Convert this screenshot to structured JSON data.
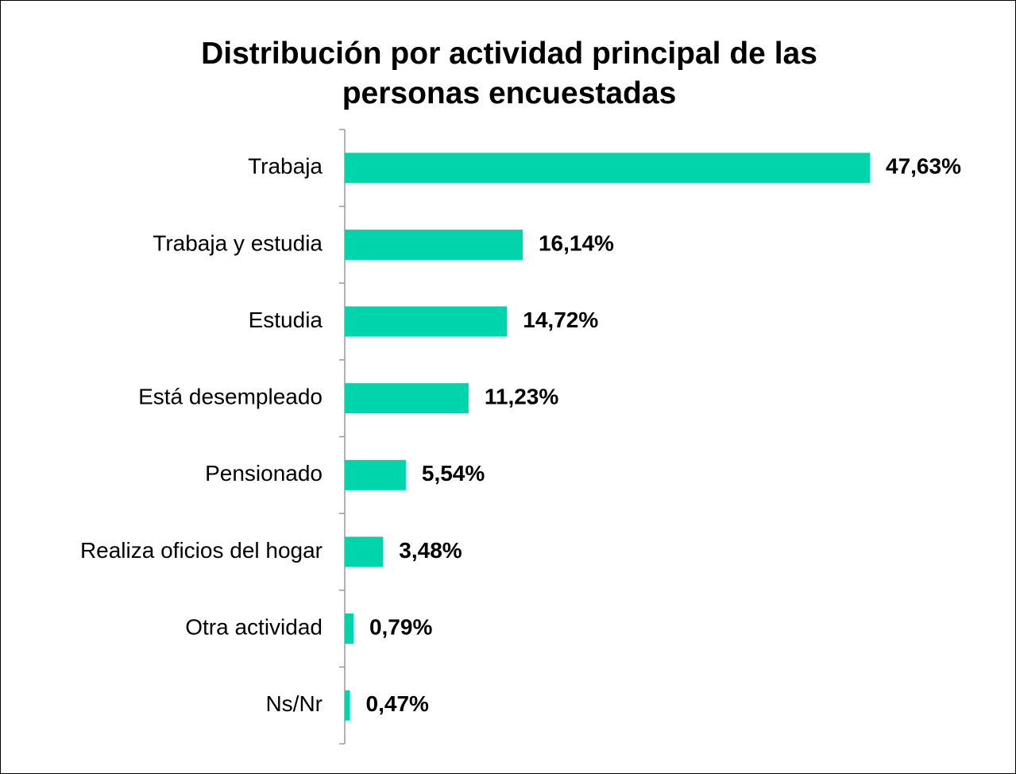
{
  "chart_data": {
    "type": "barh",
    "title": "Distribución por actividad principal de las personas encuestadas",
    "categories": [
      "Trabaja",
      "Trabaja y estudia",
      "Estudia",
      "Está desempleado",
      "Pensionado",
      "Realiza oficios del hogar",
      "Otra actividad",
      "Ns/Nr"
    ],
    "values": [
      47.63,
      16.14,
      14.72,
      11.23,
      5.54,
      3.48,
      0.79,
      0.47
    ],
    "value_labels": [
      "47,63%",
      "16,14%",
      "14,72%",
      "11,23%",
      "5,54%",
      "3,48%",
      "0,79%",
      "0,47%"
    ],
    "color": "#00d4aa"
  }
}
